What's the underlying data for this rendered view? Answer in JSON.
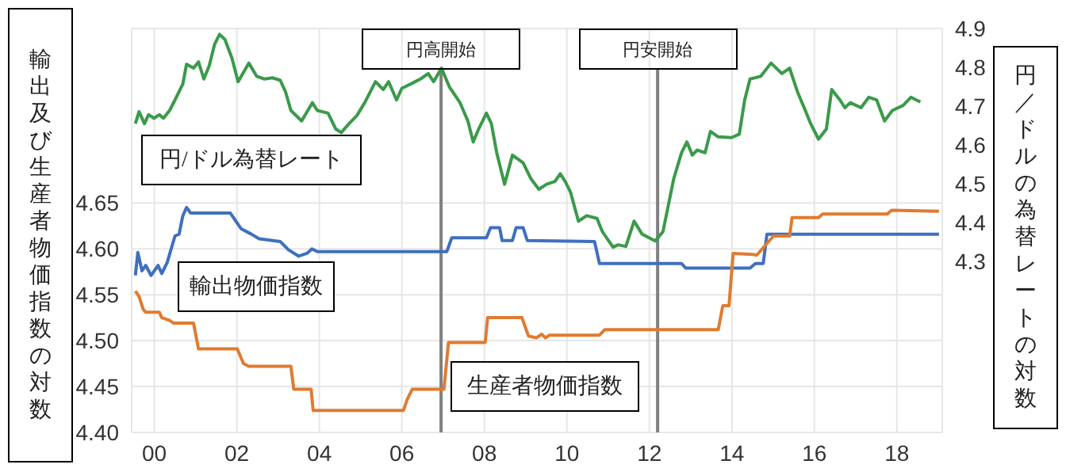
{
  "chart_data": {
    "type": "line",
    "ylabel": "輸出及び生産者物価指数の対数",
    "y2label": "円／ドルの為替レートの対数",
    "xlim": [
      1999.45,
      2019.1
    ],
    "xticks": [
      {
        "value": 2000,
        "label": "00"
      },
      {
        "value": 2002,
        "label": "02"
      },
      {
        "value": 2004,
        "label": "04"
      },
      {
        "value": 2006,
        "label": "06"
      },
      {
        "value": 2008,
        "label": "08"
      },
      {
        "value": 2010,
        "label": "10"
      },
      {
        "value": 2012,
        "label": "12"
      },
      {
        "value": 2014,
        "label": "14"
      },
      {
        "value": 2016,
        "label": "16"
      },
      {
        "value": 2018,
        "label": "18"
      }
    ],
    "ylim": [
      4.4,
      4.84
    ],
    "yticks": [
      {
        "value": 4.4,
        "label": "4.40"
      },
      {
        "value": 4.45,
        "label": "4.45"
      },
      {
        "value": 4.5,
        "label": "4.50"
      },
      {
        "value": 4.55,
        "label": "4.55"
      },
      {
        "value": 4.6,
        "label": "4.60"
      },
      {
        "value": 4.65,
        "label": "4.65"
      }
    ],
    "y2lim": [
      3.86,
      4.9
    ],
    "y2ticks": [
      4.3,
      4.4,
      4.5,
      4.6,
      4.7,
      4.8,
      4.9
    ],
    "grid": true,
    "ref_lines": [
      {
        "axis": "x",
        "value": 2006.95,
        "label": "円高開始",
        "color": "#808080"
      },
      {
        "axis": "x",
        "value": 2012.2,
        "label": "円安開始",
        "color": "#808080"
      }
    ],
    "series": [
      {
        "name": "円/ドル為替レート",
        "color": "#3a9a4a",
        "axis": "y2",
        "x": [
          1999.54,
          1999.63,
          1999.76,
          1999.86,
          1999.99,
          2000.12,
          2000.22,
          2000.37,
          2000.5,
          2000.69,
          2000.78,
          2000.95,
          2001.07,
          2001.2,
          2001.33,
          2001.46,
          2001.58,
          2001.71,
          2001.88,
          2002.03,
          2002.29,
          2002.48,
          2002.67,
          2002.86,
          2003.05,
          2003.18,
          2003.31,
          2003.57,
          2003.83,
          2003.95,
          2004.21,
          2004.4,
          2004.53,
          2004.72,
          2004.91,
          2005.1,
          2005.36,
          2005.55,
          2005.68,
          2005.87,
          2006.0,
          2006.25,
          2006.45,
          2006.64,
          2006.77,
          2006.96,
          2007.15,
          2007.41,
          2007.6,
          2007.73,
          2007.86,
          2008.05,
          2008.17,
          2008.3,
          2008.49,
          2008.68,
          2008.94,
          2009.13,
          2009.32,
          2009.51,
          2009.71,
          2009.84,
          2009.96,
          2010.09,
          2010.28,
          2010.48,
          2010.73,
          2010.86,
          2011.12,
          2011.24,
          2011.43,
          2011.63,
          2011.82,
          2012.14,
          2012.33,
          2012.59,
          2012.78,
          2012.91,
          2013.04,
          2013.16,
          2013.35,
          2013.48,
          2013.67,
          2013.99,
          2014.18,
          2014.31,
          2014.44,
          2014.7,
          2014.95,
          2015.21,
          2015.4,
          2015.59,
          2015.78,
          2015.91,
          2016.1,
          2016.29,
          2016.42,
          2016.62,
          2016.74,
          2016.87,
          2017.13,
          2017.32,
          2017.51,
          2017.7,
          2017.89,
          2018.15,
          2018.34,
          2018.47,
          2018.57
        ],
        "values": [
          4.655,
          4.686,
          4.655,
          4.678,
          4.669,
          4.678,
          4.669,
          4.689,
          4.716,
          4.757,
          4.808,
          4.798,
          4.814,
          4.77,
          4.804,
          4.859,
          4.885,
          4.872,
          4.824,
          4.763,
          4.811,
          4.777,
          4.77,
          4.773,
          4.767,
          4.737,
          4.689,
          4.662,
          4.709,
          4.689,
          4.682,
          4.641,
          4.632,
          4.655,
          4.676,
          4.709,
          4.763,
          4.743,
          4.763,
          4.716,
          4.746,
          4.759,
          4.77,
          4.784,
          4.763,
          4.798,
          4.75,
          4.709,
          4.662,
          4.608,
          4.641,
          4.682,
          4.655,
          4.58,
          4.499,
          4.574,
          4.554,
          4.513,
          4.486,
          4.499,
          4.506,
          4.526,
          4.506,
          4.478,
          4.404,
          4.418,
          4.411,
          4.377,
          4.337,
          4.343,
          4.339,
          4.404,
          4.371,
          4.353,
          4.377,
          4.513,
          4.58,
          4.608,
          4.574,
          4.587,
          4.58,
          4.635,
          4.621,
          4.619,
          4.628,
          4.716,
          4.77,
          4.777,
          4.811,
          4.784,
          4.798,
          4.737,
          4.689,
          4.655,
          4.615,
          4.641,
          4.743,
          4.716,
          4.696,
          4.709,
          4.696,
          4.723,
          4.716,
          4.662,
          4.689,
          4.702,
          4.723,
          4.716,
          4.711
        ]
      },
      {
        "name": "輸出物価指数",
        "color": "#3f6fbf",
        "x": [
          1999.54,
          1999.6,
          1999.7,
          1999.79,
          1999.92,
          2000.09,
          2000.18,
          2000.31,
          2000.5,
          2000.6,
          2000.69,
          2000.78,
          2000.88,
          2001.84,
          2002.1,
          2002.35,
          2002.54,
          2003.05,
          2003.25,
          2003.5,
          2003.7,
          2003.82,
          2003.95,
          2007.09,
          2007.21,
          2008.05,
          2008.15,
          2008.37,
          2008.43,
          2008.68,
          2008.77,
          2008.94,
          2009.04,
          2010.67,
          2010.79,
          2012.78,
          2012.88,
          2014.44,
          2014.57,
          2014.76,
          2014.85,
          2019.02
        ],
        "values": [
          4.571,
          4.596,
          4.576,
          4.582,
          4.571,
          4.582,
          4.573,
          4.585,
          4.614,
          4.616,
          4.636,
          4.645,
          4.639,
          4.639,
          4.622,
          4.616,
          4.611,
          4.608,
          4.599,
          4.592,
          4.595,
          4.6,
          4.597,
          4.597,
          4.612,
          4.612,
          4.623,
          4.623,
          4.609,
          4.609,
          4.623,
          4.623,
          4.609,
          4.608,
          4.584,
          4.584,
          4.579,
          4.579,
          4.584,
          4.584,
          4.616,
          4.616
        ]
      },
      {
        "name": "生産者物価指数",
        "color": "#e07b30",
        "x": [
          1999.54,
          1999.63,
          1999.73,
          1999.79,
          2000.12,
          2000.18,
          2000.37,
          2000.47,
          2000.95,
          2001.07,
          2002.01,
          2002.16,
          2002.29,
          2003.31,
          2003.38,
          2003.8,
          2003.85,
          2006.04,
          2006.13,
          2006.25,
          2007.02,
          2007.13,
          2008.02,
          2008.08,
          2008.91,
          2009.07,
          2009.26,
          2009.39,
          2009.48,
          2009.58,
          2010.79,
          2010.92,
          2013.67,
          2013.78,
          2013.93,
          2014.03,
          2014.5,
          2014.6,
          2015.01,
          2015.4,
          2015.46,
          2016.1,
          2016.2,
          2017.77,
          2017.87,
          2019.02
        ],
        "values": [
          4.554,
          4.548,
          4.534,
          4.531,
          4.531,
          4.525,
          4.522,
          4.519,
          4.519,
          4.491,
          4.491,
          4.475,
          4.472,
          4.472,
          4.447,
          4.447,
          4.424,
          4.424,
          4.436,
          4.447,
          4.447,
          4.498,
          4.498,
          4.525,
          4.525,
          4.505,
          4.503,
          4.507,
          4.503,
          4.506,
          4.506,
          4.512,
          4.512,
          4.538,
          4.538,
          4.595,
          4.594,
          4.593,
          4.614,
          4.614,
          4.634,
          4.634,
          4.638,
          4.638,
          4.642,
          4.641
        ]
      }
    ]
  }
}
